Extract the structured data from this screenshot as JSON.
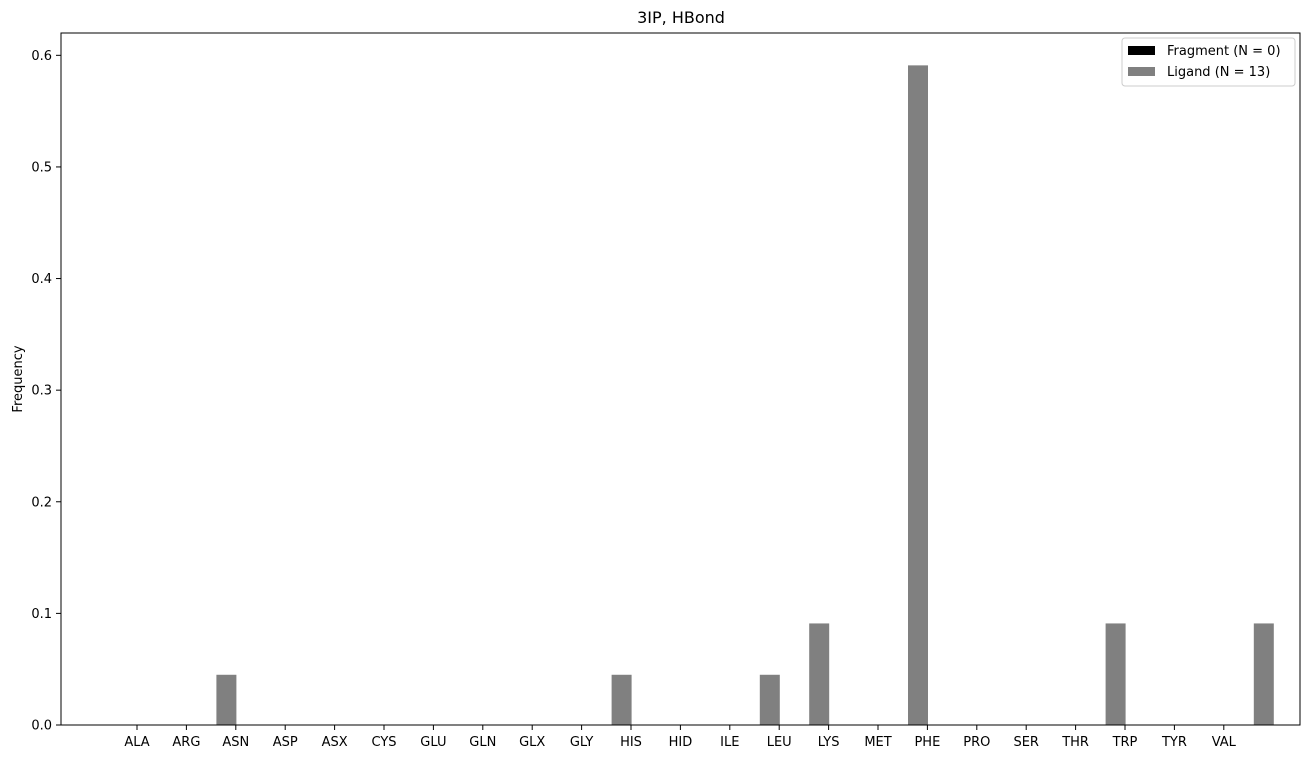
{
  "chart_data": {
    "type": "bar",
    "title": "3IP, HBond",
    "xlabel": "",
    "ylabel": "Frequency",
    "ylim": [
      0,
      0.62
    ],
    "yticks": [
      "0.0",
      "0.1",
      "0.2",
      "0.3",
      "0.4",
      "0.5",
      "0.6"
    ],
    "grid": false,
    "legend_position": "top-right",
    "categories": [
      "ALA",
      "ARG",
      "ASN",
      "ASP",
      "ASX",
      "CYS",
      "GLU",
      "GLN",
      "GLX",
      "GLY",
      "HIS",
      "HID",
      "ILE",
      "LEU",
      "LYS",
      "MET",
      "PHE",
      "PRO",
      "SER",
      "THR",
      "TRP",
      "TYR",
      "VAL"
    ],
    "series": [
      {
        "name": "Fragment (N = 0)",
        "color": "#000000",
        "values": [
          0,
          0,
          0,
          0,
          0,
          0,
          0,
          0,
          0,
          0,
          0,
          0,
          0,
          0,
          0,
          0,
          0,
          0,
          0,
          0,
          0,
          0,
          0
        ]
      },
      {
        "name": "Ligand (N = 13)",
        "color": "#808080",
        "values": [
          0,
          0.045,
          0,
          0,
          0,
          0,
          0,
          0,
          0,
          0.045,
          0,
          0,
          0.045,
          0.091,
          0,
          0.591,
          0,
          0,
          0,
          0.091,
          0,
          0,
          0.091
        ]
      }
    ]
  }
}
